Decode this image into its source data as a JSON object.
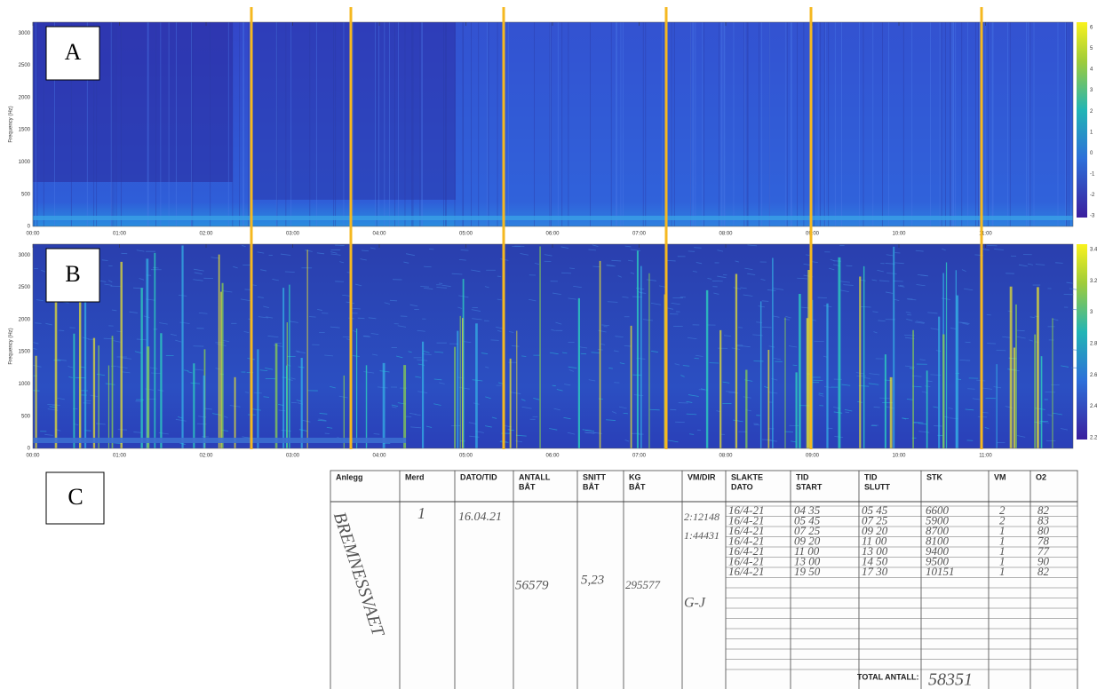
{
  "panels": [
    {
      "label": "A",
      "y_label": "Frequency (Hz)",
      "yticks": [
        "0",
        "500",
        "1000",
        "1500",
        "2000",
        "2500",
        "3000"
      ],
      "xticks": [
        "00:00",
        "01:00",
        "02:00",
        "03:00",
        "04:00",
        "05:00",
        "06:00",
        "07:00",
        "08:00",
        "09:00",
        "10:00",
        "11:00"
      ],
      "colorbar_ticks": [
        "6",
        "5",
        "4",
        "3",
        "2",
        "1",
        "0",
        "-1",
        "-2",
        "-3"
      ]
    },
    {
      "label": "B",
      "y_label": "Frequency (Hz)",
      "yticks": [
        "0",
        "500",
        "1000",
        "1500",
        "2000",
        "2500",
        "3000"
      ],
      "xticks": [
        "00:00",
        "01:00",
        "02:00",
        "03:00",
        "04:00",
        "05:00",
        "06:00",
        "07:00",
        "08:00",
        "09:00",
        "10:00",
        "11:00"
      ],
      "colorbar_ticks": [
        "3.4",
        "3.2",
        "3",
        "2.8",
        "2.6",
        "2.4",
        "2.2"
      ]
    }
  ],
  "table_label": "C",
  "table": {
    "headers": [
      [
        "Anlegg"
      ],
      [
        "Merd"
      ],
      [
        "DATO/TID"
      ],
      [
        "ANTALL",
        "BÅT"
      ],
      [
        "SNITT",
        "BÅT"
      ],
      [
        "KG",
        "BÅT"
      ],
      [
        "VM/DIR"
      ],
      [
        "SLAKTE",
        "DATO"
      ],
      [
        "TID",
        "START"
      ],
      [
        "TID",
        "SLUTT"
      ],
      [
        "STK"
      ],
      [
        "VM"
      ],
      [
        "O2"
      ]
    ],
    "anlegg": "BREMNESSVAET",
    "merd": "1",
    "dato": "16.04.21",
    "antall": "56579",
    "snitt": "5,23",
    "kg": "295577",
    "vm_dir": [
      "2:12148",
      "1:44431",
      "G-J"
    ],
    "rows": [
      [
        "16/4-21",
        "04 35",
        "05 45",
        "6600",
        "2",
        "82"
      ],
      [
        "16/4-21",
        "05 45",
        "07 25",
        "5900",
        "2",
        "83"
      ],
      [
        "16/4-21",
        "07 25",
        "09 20",
        "8700",
        "1",
        "80"
      ],
      [
        "16/4-21",
        "09 20",
        "11 00",
        "8100",
        "1",
        "78"
      ],
      [
        "16/4-21",
        "11 00",
        "13 00",
        "9400",
        "1",
        "77"
      ],
      [
        "16/4-21",
        "13 00",
        "14 50",
        "9500",
        "1",
        "90"
      ],
      [
        "16/4-21",
        "19 50",
        "17 30",
        "10151",
        "1",
        "82"
      ]
    ],
    "total_label": "TOTAL ANTALL:",
    "total": "58351"
  }
}
